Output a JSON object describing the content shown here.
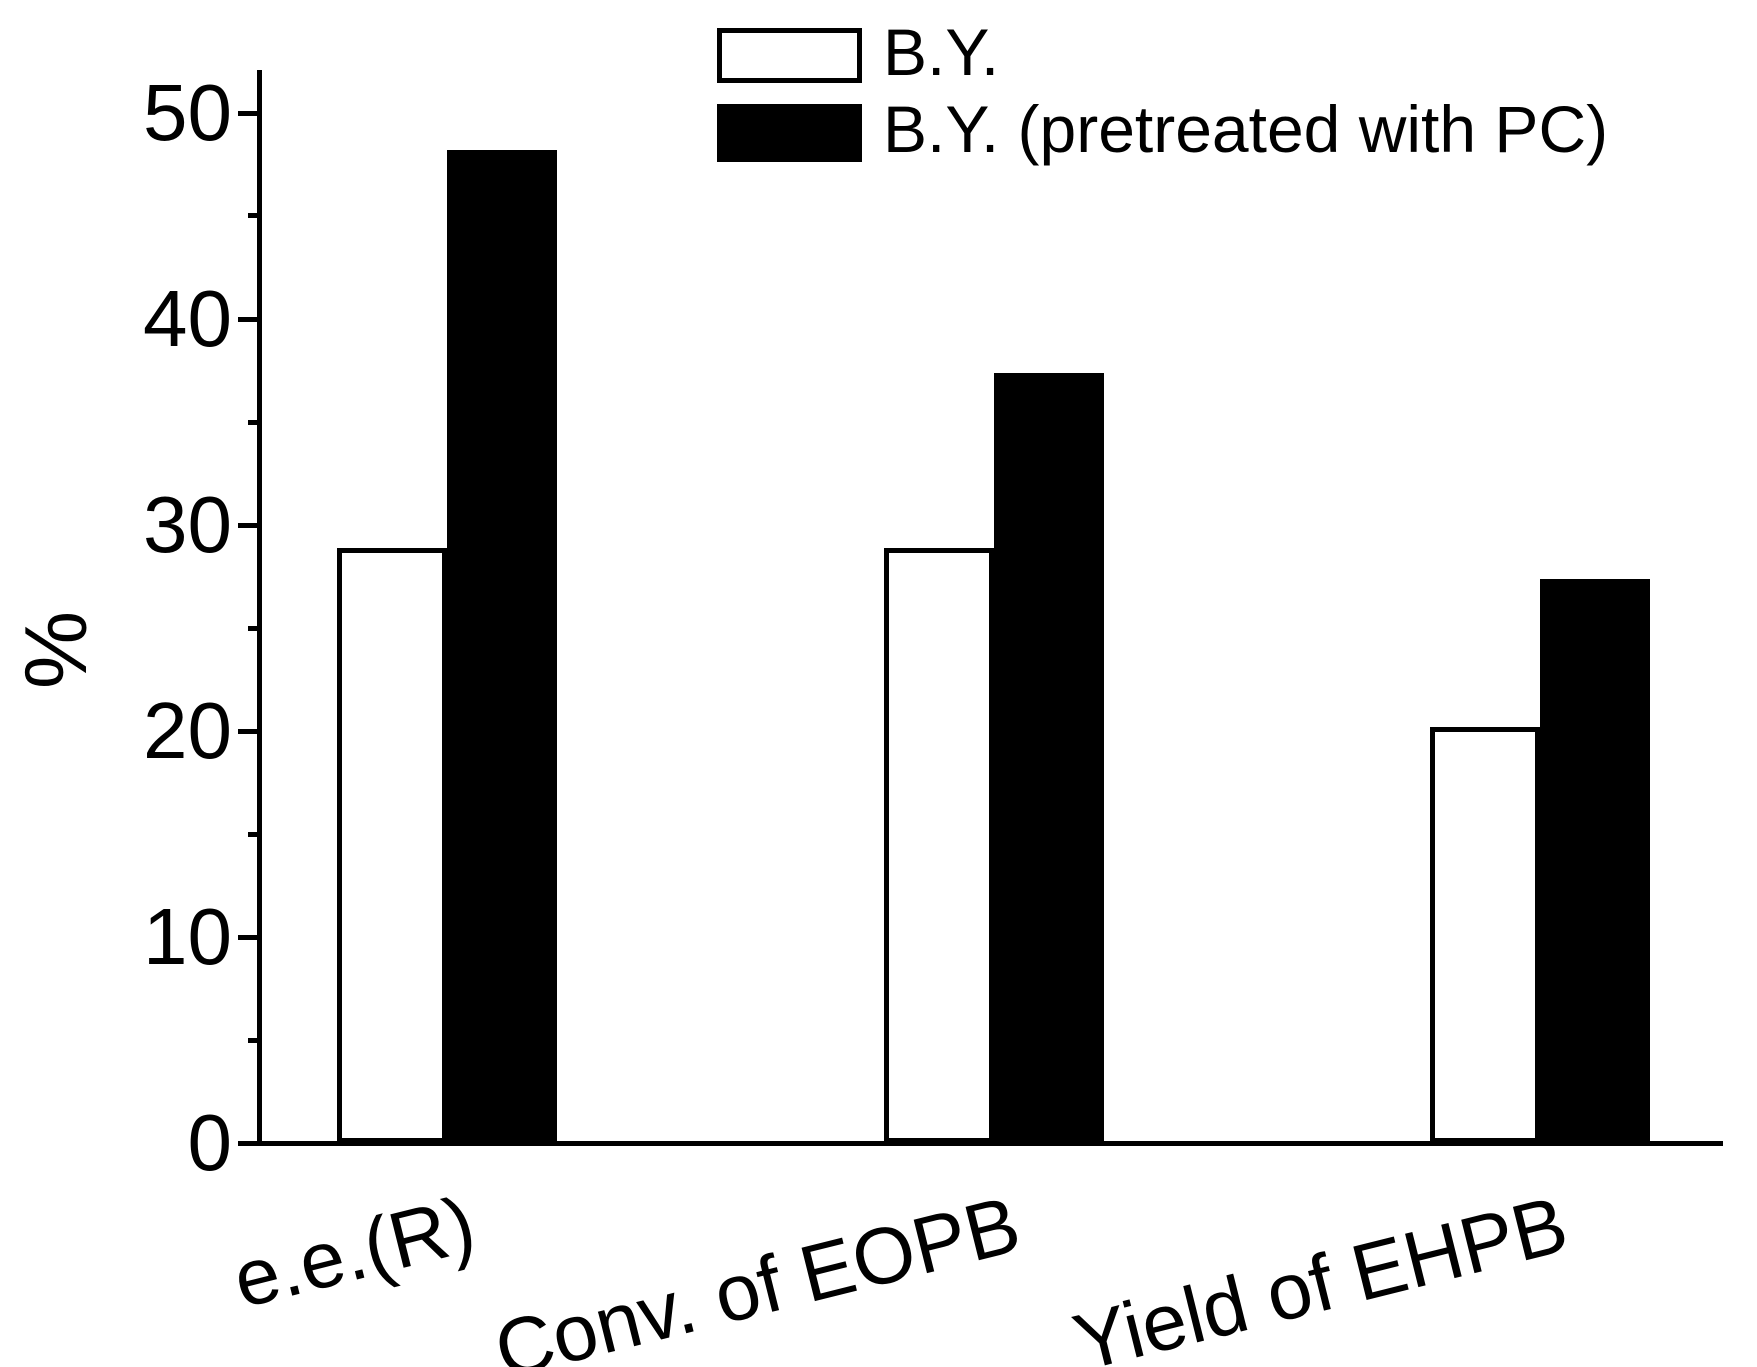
{
  "chart_data": {
    "type": "bar",
    "title": "",
    "ylabel": "%",
    "xlabel": "",
    "categories": [
      "e.e.(R)",
      "Conv. of EOPB",
      "Yield of EHPB"
    ],
    "series": [
      {
        "name": "B.Y.",
        "fill": "#ffffff",
        "outline": "#000000",
        "values": [
          28.9,
          28.9,
          20.2
        ]
      },
      {
        "name": "B.Y. (pretreated with PC)",
        "fill": "#000000",
        "outline": "#000000",
        "values": [
          48.2,
          37.4,
          27.4
        ]
      }
    ],
    "ylim": [
      0,
      52
    ],
    "yticks": [
      0,
      10,
      20,
      30,
      40,
      50
    ],
    "minor_yticks": [
      5,
      15,
      25,
      35,
      45
    ],
    "grid": false,
    "legend_position": "top-center",
    "axis_color": "#000000",
    "background_color": "#ffffff"
  }
}
